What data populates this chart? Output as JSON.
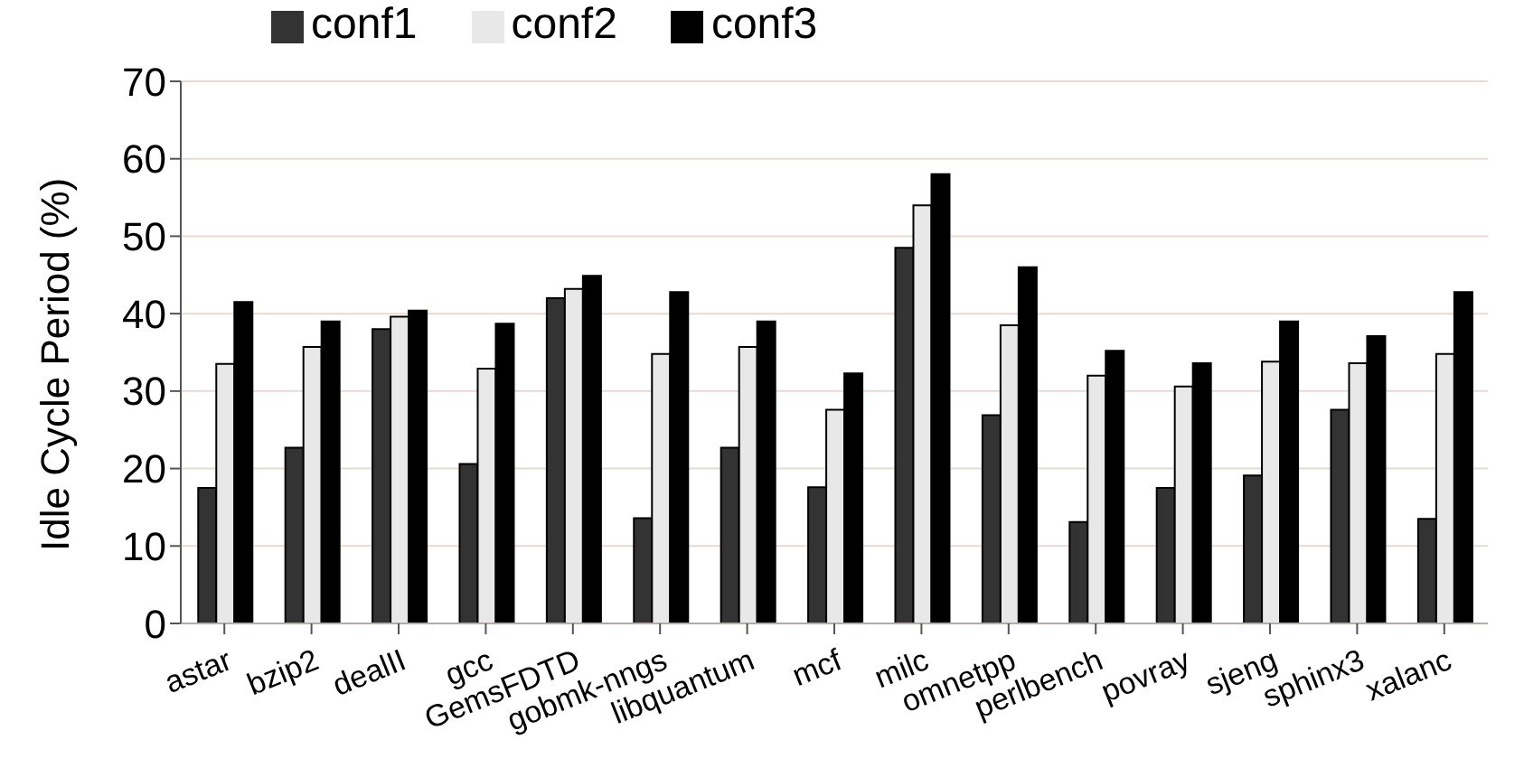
{
  "chart_data": {
    "type": "bar",
    "ylabel": "Idle Cycle Period (%)",
    "categories": [
      "astar",
      "bzip2",
      "dealII",
      "gcc",
      "GemsFDTD",
      "gobmk-nngs",
      "libquantum",
      "mcf",
      "milc",
      "omnetpp",
      "perlbench",
      "povray",
      "sjeng",
      "sphinx3",
      "xalanc"
    ],
    "series": [
      {
        "name": "conf1",
        "color": "#333333",
        "values": [
          17.5,
          22.7,
          38,
          20.6,
          42,
          13.6,
          22.7,
          17.6,
          48.5,
          26.9,
          13.1,
          17.5,
          19.1,
          27.6,
          13.5
        ]
      },
      {
        "name": "conf2",
        "color": "#e8e8e8",
        "values": [
          33.5,
          35.7,
          39.6,
          32.9,
          43.2,
          34.8,
          35.7,
          27.6,
          54,
          38.5,
          32,
          30.6,
          33.8,
          33.6,
          34.8
        ]
      },
      {
        "name": "conf3",
        "color": "#000000",
        "values": [
          41.5,
          39,
          40.4,
          38.7,
          44.9,
          42.8,
          39,
          32.3,
          58,
          46,
          35.2,
          33.6,
          39,
          37.1,
          42.8
        ]
      }
    ],
    "ylim": [
      0,
      70
    ],
    "yticks": [
      0,
      10,
      20,
      30,
      40,
      50,
      60,
      70
    ],
    "grid": "y",
    "legend": "top left"
  }
}
